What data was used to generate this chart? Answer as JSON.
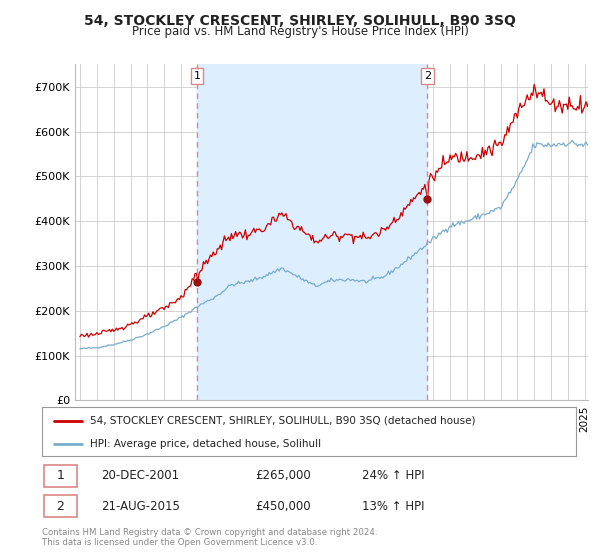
{
  "title": "54, STOCKLEY CRESCENT, SHIRLEY, SOLIHULL, B90 3SQ",
  "subtitle": "Price paid vs. HM Land Registry's House Price Index (HPI)",
  "footer": "Contains HM Land Registry data © Crown copyright and database right 2024.\nThis data is licensed under the Open Government Licence v3.0.",
  "legend_line1": "54, STOCKLEY CRESCENT, SHIRLEY, SOLIHULL, B90 3SQ (detached house)",
  "legend_line2": "HPI: Average price, detached house, Solihull",
  "sale1_date": "20-DEC-2001",
  "sale1_price": "£265,000",
  "sale1_hpi": "24% ↑ HPI",
  "sale2_date": "21-AUG-2015",
  "sale2_price": "£450,000",
  "sale2_hpi": "13% ↑ HPI",
  "price_color": "#cc0000",
  "hpi_color": "#7aadcc",
  "vline_color": "#dd8888",
  "shade_color": "#ddeeff",
  "dot_color": "#991111",
  "background_color": "#ffffff",
  "grid_color": "#cccccc",
  "ylim": [
    0,
    750000
  ],
  "yticks": [
    0,
    100000,
    200000,
    300000,
    400000,
    500000,
    600000,
    700000
  ],
  "ytick_labels": [
    "£0",
    "£100K",
    "£200K",
    "£300K",
    "£400K",
    "£500K",
    "£600K",
    "£700K"
  ],
  "sale1_x": 2001.96,
  "sale1_y": 265000,
  "sale2_x": 2015.64,
  "sale2_y": 450000,
  "xmin": 1994.7,
  "xmax": 2025.2
}
